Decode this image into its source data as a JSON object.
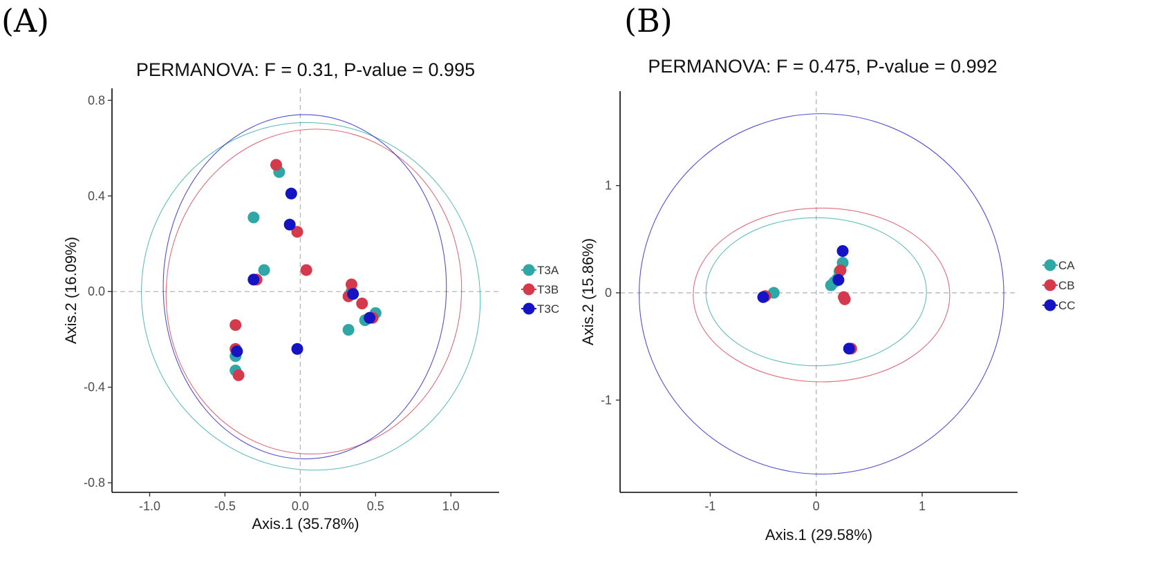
{
  "chart_data": [
    {
      "type": "scatter",
      "panel_label": "(A)",
      "title": "PERMANOVA: F = 0.31, P-value = 0.995",
      "xlabel": "Axis.1 (35.78%)",
      "ylabel": "Axis.2 (16.09%)",
      "xlim": [
        -1.25,
        1.32
      ],
      "ylim": [
        -0.84,
        0.85
      ],
      "xticks": [
        -1.0,
        -0.5,
        0.0,
        0.5,
        1.0
      ],
      "xtick_labels": [
        "-1.0",
        "-0.5",
        "0.0",
        "0.5",
        "1.0"
      ],
      "yticks": [
        -0.8,
        -0.4,
        0.0,
        0.4,
        0.8
      ],
      "ytick_labels": [
        "-0.8",
        "-0.4",
        "0.0",
        "0.4",
        "0.8"
      ],
      "ref_lines": {
        "x": 0,
        "y": 0
      },
      "legend_position": "right",
      "series": [
        {
          "name": "T3A",
          "color": "#2fa7a7",
          "x": [
            -0.14,
            -0.31,
            -0.24,
            -0.43,
            -0.43,
            0.32,
            0.43,
            0.5,
            0.34
          ],
          "y": [
            0.5,
            0.31,
            0.09,
            -0.27,
            -0.33,
            -0.16,
            -0.12,
            -0.09,
            0.0
          ],
          "ellipse": {
            "cx": 0.07,
            "cy": -0.02,
            "rx": 1.12,
            "ry": 0.73,
            "rotate_deg": -20
          }
        },
        {
          "name": "T3B",
          "color": "#d43a4b",
          "x": [
            -0.16,
            -0.02,
            0.04,
            -0.29,
            -0.43,
            -0.43,
            -0.41,
            0.34,
            0.32,
            0.41,
            0.48
          ],
          "y": [
            0.53,
            0.25,
            0.09,
            0.05,
            -0.14,
            -0.24,
            -0.35,
            0.03,
            -0.02,
            -0.05,
            -0.11
          ],
          "ellipse": {
            "cx": 0.09,
            "cy": 0.0,
            "rx": 0.98,
            "ry": 0.68,
            "rotate_deg": 5
          }
        },
        {
          "name": "T3C",
          "color": "#1414c4",
          "x": [
            -0.06,
            -0.07,
            -0.31,
            -0.42,
            0.35,
            0.46,
            -0.02
          ],
          "y": [
            0.41,
            0.28,
            0.05,
            -0.25,
            -0.01,
            -0.11,
            -0.24
          ],
          "ellipse": {
            "cx": 0.03,
            "cy": 0.02,
            "rx": 0.94,
            "ry": 0.72,
            "rotate_deg": 0
          }
        }
      ]
    },
    {
      "type": "scatter",
      "panel_label": "(B)",
      "title": "PERMANOVA: F = 0.475, P-value = 0.992",
      "xlabel": "Axis.1 (29.58%)",
      "ylabel": "Axis.2 (15.86%)",
      "xlim": [
        -1.85,
        1.9
      ],
      "ylim": [
        -1.86,
        1.88
      ],
      "xticks": [
        -1,
        0,
        1
      ],
      "xtick_labels": [
        "-1",
        "0",
        "1"
      ],
      "yticks": [
        -1,
        0,
        1
      ],
      "ytick_labels": [
        "-1",
        "0",
        "1"
      ],
      "ref_lines": {
        "x": 0,
        "y": 0
      },
      "legend_position": "right",
      "series": [
        {
          "name": "CA",
          "color": "#2fa7a7",
          "x": [
            -0.4,
            0.25,
            0.22,
            0.2,
            0.17,
            0.14
          ],
          "y": [
            0.0,
            0.28,
            0.2,
            0.13,
            0.1,
            0.07
          ],
          "ellipse": {
            "cx": 0.0,
            "cy": 0.01,
            "rx": 1.04,
            "ry": 0.69,
            "rotate_deg": 0
          }
        },
        {
          "name": "CB",
          "color": "#d43a4b",
          "x": [
            -0.48,
            0.23,
            0.26,
            0.27,
            0.33
          ],
          "y": [
            -0.03,
            0.21,
            -0.04,
            -0.06,
            -0.52
          ],
          "ellipse": {
            "cx": 0.05,
            "cy": -0.02,
            "rx": 1.21,
            "ry": 0.81,
            "rotate_deg": 0
          }
        },
        {
          "name": "CC",
          "color": "#1414c4",
          "x": [
            -0.5,
            0.25,
            0.21,
            0.31
          ],
          "y": [
            -0.04,
            0.39,
            0.12,
            -0.52
          ],
          "ellipse": {
            "cx": 0.05,
            "cy": -0.01,
            "rx": 1.72,
            "ry": 1.68,
            "rotate_deg": 0
          }
        }
      ]
    }
  ]
}
